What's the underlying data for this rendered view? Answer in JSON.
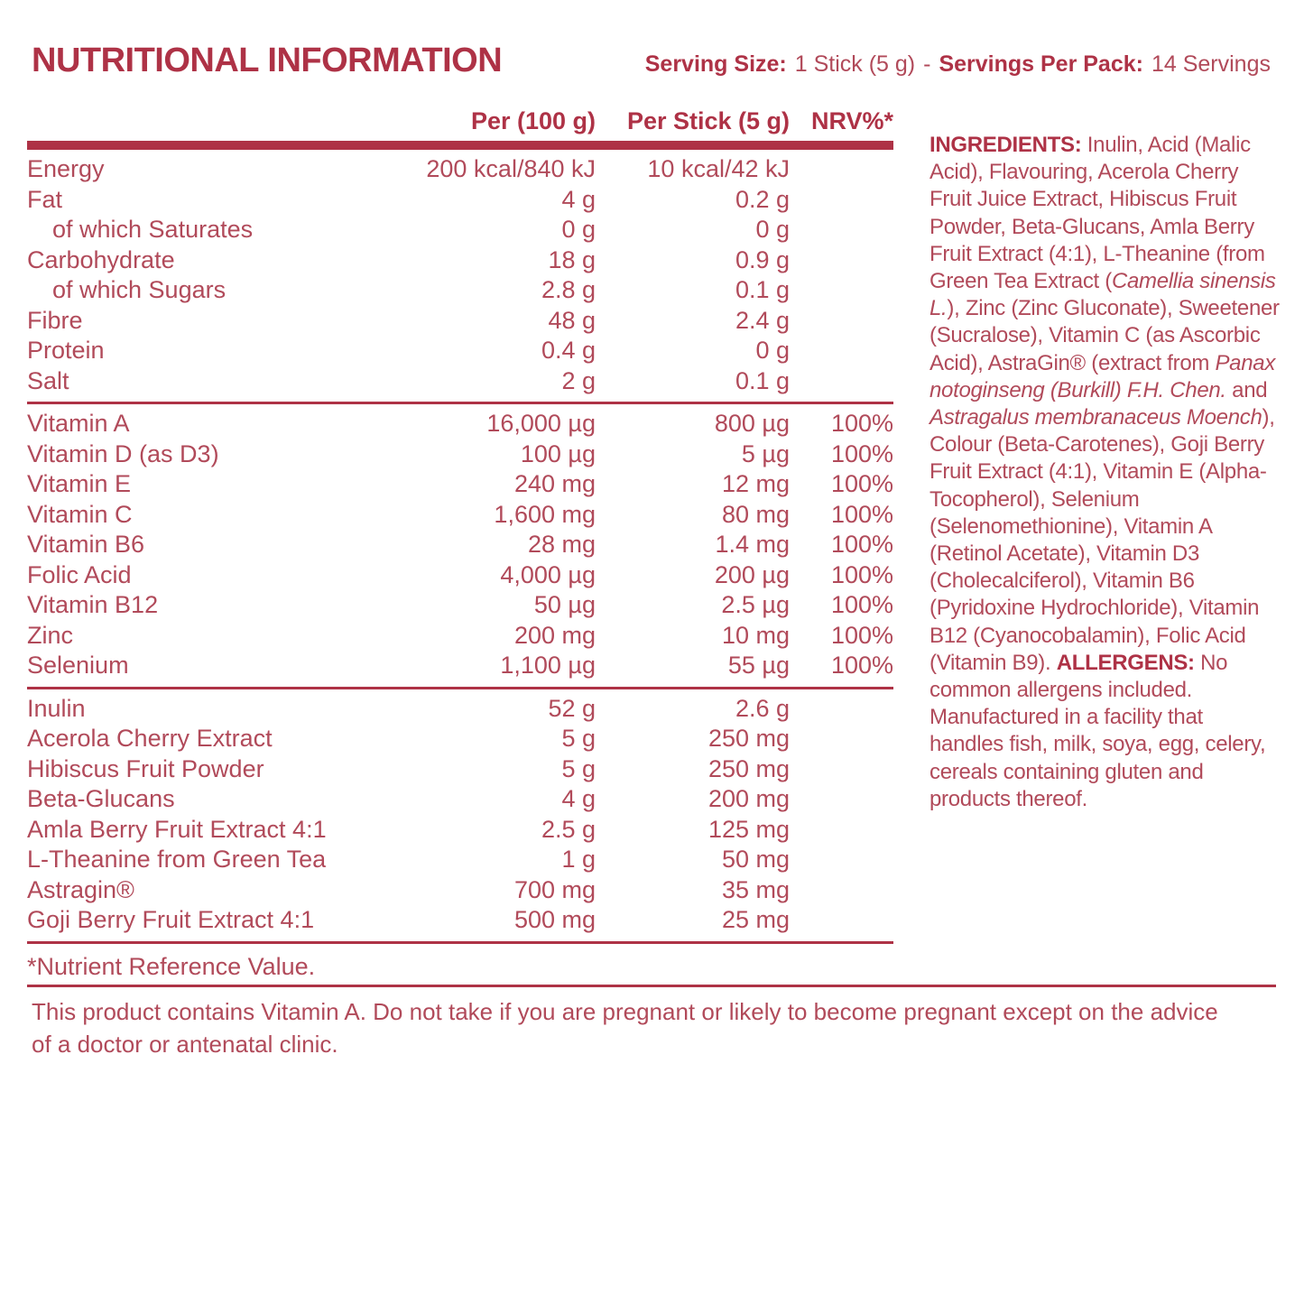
{
  "title": "NUTRITIONAL INFORMATION",
  "accent_color": "#ae3246",
  "text_color": "#b14a5a",
  "serving": {
    "size_label": "Serving Size:",
    "size_value": "1 Stick (5 g)",
    "separator": "-",
    "pack_label": "Servings Per Pack:",
    "pack_value": "14 Servings"
  },
  "table": {
    "headers": {
      "per100": "Per (100 g)",
      "perStick": "Per Stick (5 g)",
      "nrv": "NRV%*"
    },
    "sections": [
      {
        "rows": [
          {
            "label": "Energy",
            "indent": false,
            "per100": "200 kcal/840 kJ",
            "perStick": "10 kcal/42 kJ",
            "nrv": ""
          },
          {
            "label": "Fat",
            "indent": false,
            "per100": "4 g",
            "perStick": "0.2 g",
            "nrv": ""
          },
          {
            "label": "of which Saturates",
            "indent": true,
            "per100": "0 g",
            "perStick": "0 g",
            "nrv": ""
          },
          {
            "label": "Carbohydrate",
            "indent": false,
            "per100": "18 g",
            "perStick": "0.9 g",
            "nrv": ""
          },
          {
            "label": "of which Sugars",
            "indent": true,
            "per100": "2.8 g",
            "perStick": "0.1 g",
            "nrv": ""
          },
          {
            "label": "Fibre",
            "indent": false,
            "per100": "48 g",
            "perStick": "2.4 g",
            "nrv": ""
          },
          {
            "label": "Protein",
            "indent": false,
            "per100": "0.4 g",
            "perStick": "0 g",
            "nrv": ""
          },
          {
            "label": "Salt",
            "indent": false,
            "per100": "2 g",
            "perStick": "0.1 g",
            "nrv": ""
          }
        ]
      },
      {
        "rows": [
          {
            "label": "Vitamin A",
            "indent": false,
            "per100": "16,000 µg",
            "perStick": "800 µg",
            "nrv": "100%"
          },
          {
            "label": "Vitamin D (as D3)",
            "indent": false,
            "per100": "100 µg",
            "perStick": "5 µg",
            "nrv": "100%"
          },
          {
            "label": "Vitamin E",
            "indent": false,
            "per100": "240 mg",
            "perStick": "12 mg",
            "nrv": "100%"
          },
          {
            "label": "Vitamin C",
            "indent": false,
            "per100": "1,600 mg",
            "perStick": "80 mg",
            "nrv": "100%"
          },
          {
            "label": "Vitamin B6",
            "indent": false,
            "per100": "28 mg",
            "perStick": "1.4 mg",
            "nrv": "100%"
          },
          {
            "label": "Folic Acid",
            "indent": false,
            "per100": "4,000 µg",
            "perStick": "200 µg",
            "nrv": "100%"
          },
          {
            "label": "Vitamin B12",
            "indent": false,
            "per100": "50 µg",
            "perStick": "2.5 µg",
            "nrv": "100%"
          },
          {
            "label": "Zinc",
            "indent": false,
            "per100": "200 mg",
            "perStick": "10 mg",
            "nrv": "100%"
          },
          {
            "label": "Selenium",
            "indent": false,
            "per100": "1,100 µg",
            "perStick": "55 µg",
            "nrv": "100%"
          }
        ]
      },
      {
        "rows": [
          {
            "label": "Inulin",
            "indent": false,
            "per100": "52 g",
            "perStick": "2.6 g",
            "nrv": ""
          },
          {
            "label": "Acerola Cherry Extract",
            "indent": false,
            "per100": "5 g",
            "perStick": "250 mg",
            "nrv": ""
          },
          {
            "label": "Hibiscus Fruit Powder",
            "indent": false,
            "per100": "5 g",
            "perStick": "250 mg",
            "nrv": ""
          },
          {
            "label": "Beta-Glucans",
            "indent": false,
            "per100": "4 g",
            "perStick": "200 mg",
            "nrv": ""
          },
          {
            "label": "Amla Berry Fruit Extract 4:1",
            "indent": false,
            "per100": "2.5 g",
            "perStick": "125 mg",
            "nrv": ""
          },
          {
            "label": "L-Theanine from Green Tea",
            "indent": false,
            "per100": "1 g",
            "perStick": "50 mg",
            "nrv": ""
          },
          {
            "label": "Astragin®",
            "indent": false,
            "per100": "700 mg",
            "perStick": "35 mg",
            "nrv": ""
          },
          {
            "label": "Goji Berry Fruit Extract 4:1",
            "indent": false,
            "per100": "500 mg",
            "perStick": "25 mg",
            "nrv": ""
          }
        ]
      }
    ],
    "footnote": "*Nutrient Reference Value."
  },
  "ingredients": {
    "segments": [
      {
        "style": "bold",
        "text": "INGREDIENTS: "
      },
      {
        "style": "normal",
        "text": "Inulin, Acid (Malic Acid), Flavouring, Acerola Cherry Fruit Juice Extract, Hibiscus Fruit Powder, Beta-Glucans, Amla Berry Fruit Extract (4:1), L-Theanine (from Green Tea Extract ("
      },
      {
        "style": "italic",
        "text": "Camellia sinensis L."
      },
      {
        "style": "normal",
        "text": "), Zinc (Zinc Gluconate), Sweetener (Sucralose), Vitamin C (as Ascorbic Acid), AstraGin® (extract from "
      },
      {
        "style": "italic",
        "text": "Panax notoginseng (Burkill) F.H. Chen."
      },
      {
        "style": "normal",
        "text": " and "
      },
      {
        "style": "italic",
        "text": "Astragalus membranaceus Moench"
      },
      {
        "style": "normal",
        "text": "), Colour (Beta-Carotenes), Goji Berry Fruit Extract (4:1), Vitamin E (Alpha-Tocopherol), Selenium (Selenomethionine), Vitamin A (Retinol Acetate), Vitamin D3 (Cholecalciferol), Vitamin B6 (Pyridoxine Hydrochloride), Vitamin B12 (Cyanocobalamin), Folic Acid (Vitamin B9). "
      },
      {
        "style": "bold",
        "text": "ALLERGENS: "
      },
      {
        "style": "normal",
        "text": "No common allergens included. Manufactured in a facility that handles fish, milk, soya, egg, celery, cereals containing gluten and products thereof."
      }
    ]
  },
  "warning": "This product contains Vitamin A. Do not take if you are pregnant or likely to become pregnant except on the advice of a doctor or antenatal clinic."
}
